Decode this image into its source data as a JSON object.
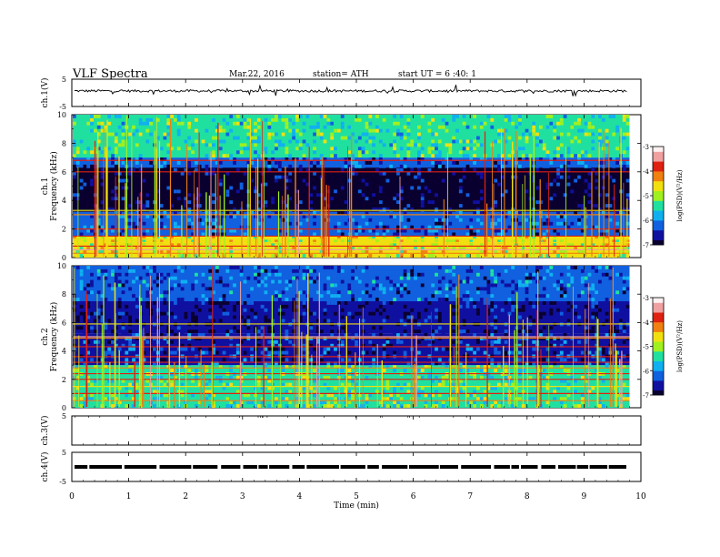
{
  "header": {
    "title": "VLF  Spectra",
    "date": "Mar.22, 2016",
    "station": "station= ATH",
    "start": "start  UT  =   6  :40: 1"
  },
  "chart_data": [
    {
      "type": "line",
      "panel": "ch1-waveform",
      "ylabel": "ch.1(V)",
      "ylim": [
        -5,
        5
      ],
      "yticks": [
        "5",
        "-5"
      ],
      "baseline": 0.7
    },
    {
      "type": "heatmap",
      "panel": "ch1-spectrogram",
      "ylabel": [
        "ch.1",
        "Frequency  (kHz)"
      ],
      "ylim": [
        0,
        10
      ],
      "yticks": [
        "0",
        "2",
        "4",
        "6",
        "8",
        "10"
      ],
      "colorbar": {
        "label": "log(PSD)(V²/Hz)",
        "range": [
          -7,
          -3
        ],
        "ticks": [
          "-3",
          "-4",
          "-5",
          "-6",
          "-7"
        ]
      },
      "bands_khz": [
        {
          "lo": 0,
          "hi": 1.5,
          "level": -4.8
        },
        {
          "lo": 1.5,
          "hi": 3.2,
          "level": -6.3
        },
        {
          "lo": 3.2,
          "hi": 6.3,
          "level": -6.9
        },
        {
          "lo": 6.3,
          "hi": 7.0,
          "level": -6.3
        },
        {
          "lo": 7.0,
          "hi": 10,
          "level": -5.4
        }
      ],
      "lines_khz": [
        0.3,
        0.55,
        0.8,
        1.05,
        1.3,
        1.5,
        2.0,
        3.0,
        3.3,
        6.0,
        6.8
      ]
    },
    {
      "type": "heatmap",
      "panel": "ch2-spectrogram",
      "ylabel": [
        "ch.2",
        "Frequency  (kHz)"
      ],
      "ylim": [
        0,
        10
      ],
      "yticks": [
        "0",
        "2",
        "4",
        "6",
        "8",
        "10"
      ],
      "colorbar": {
        "label": "log(PSD)(V²/Hz)",
        "range": [
          -7,
          -3
        ],
        "ticks": [
          "-3",
          "-4",
          "-5",
          "-6",
          "-7"
        ]
      },
      "bands_khz": [
        {
          "lo": 0,
          "hi": 3.0,
          "level": -5.3
        },
        {
          "lo": 3.0,
          "hi": 5.2,
          "level": -6.4
        },
        {
          "lo": 5.2,
          "hi": 7.5,
          "level": -6.8
        },
        {
          "lo": 7.5,
          "hi": 10,
          "level": -6.2
        }
      ],
      "lines_khz": [
        0.5,
        1.0,
        1.5,
        2.0,
        2.4,
        2.8,
        3.2,
        3.6,
        4.3,
        4.9,
        5.0,
        5.9
      ]
    },
    {
      "type": "line",
      "panel": "ch3-waveform",
      "ylabel": "ch.3(V)",
      "ylim": [
        -5,
        5
      ],
      "yticks": [
        "5"
      ],
      "baseline": 5
    },
    {
      "type": "line",
      "panel": "ch4-waveform",
      "ylabel": "ch.4(V)",
      "ylim": [
        -5,
        5
      ],
      "yticks": [
        "5",
        "-5"
      ],
      "baseline": 0
    }
  ],
  "xaxis": {
    "label": "Time  (min)",
    "range": [
      0,
      10
    ],
    "ticks": [
      "0",
      "1",
      "2",
      "3",
      "4",
      "5",
      "6",
      "7",
      "8",
      "9",
      "10"
    ],
    "data_end": 9.8
  },
  "colors": {
    "colormap": [
      "#0a0030",
      "#1010a0",
      "#1060e0",
      "#10b0f0",
      "#20e0a0",
      "#a0f020",
      "#f0e010",
      "#f08010",
      "#e02010",
      "#f0a0a0",
      "#fff0f0"
    ]
  }
}
